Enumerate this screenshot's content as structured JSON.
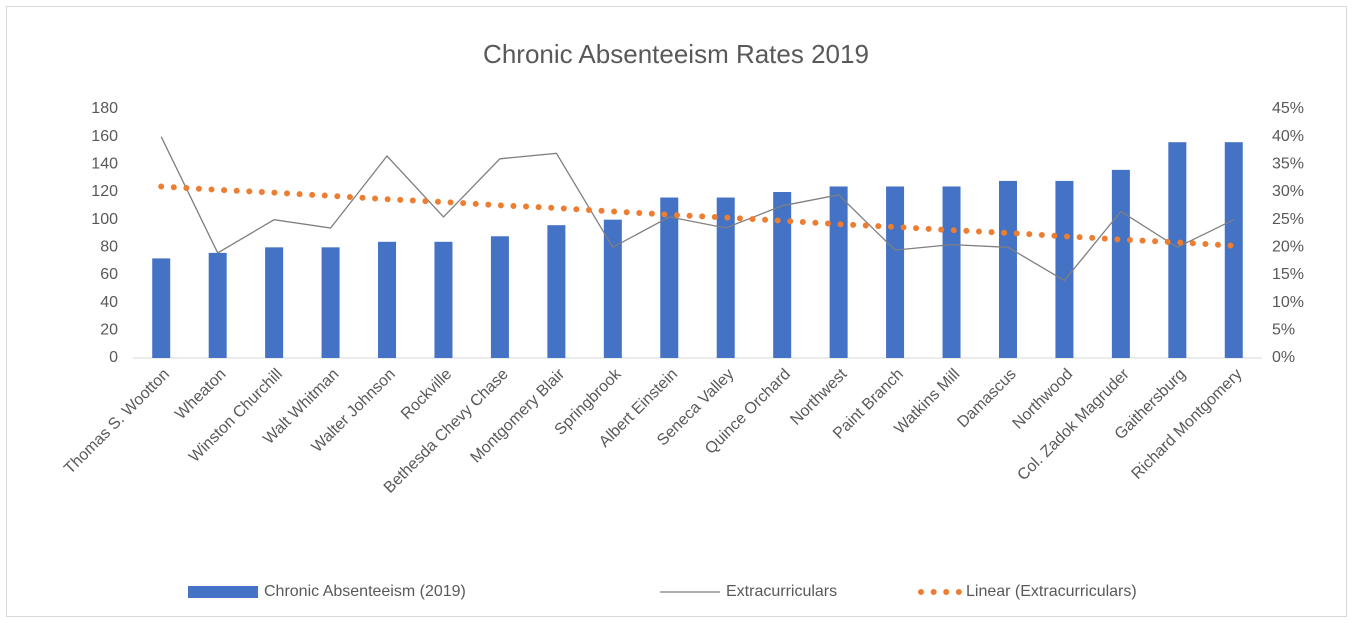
{
  "chart_data": {
    "type": "bar-line",
    "title": "Chronic Absenteeism Rates 2019",
    "categories": [
      "Thomas S. Wootton",
      "Wheaton",
      "Winston Churchill",
      "Walt Whitman",
      "Walter Johnson",
      "Rockville",
      "Bethesda Chevy Chase",
      "Montgomery Blair",
      "Springbrook",
      "Albert Einstein",
      "Seneca Valley",
      "Quince Orchard",
      "Northwest",
      "Paint Branch",
      "Watkins Mill",
      "Damascus",
      "Northwood",
      "Col. Zadok Magruder",
      "Gaithersburg",
      "Richard Montgomery"
    ],
    "series": [
      {
        "name": "Chronic Absenteeism (2019)",
        "type": "bar",
        "color": "#4472c4",
        "values": [
          72,
          76,
          80,
          80,
          84,
          84,
          88,
          96,
          100,
          116,
          116,
          120,
          124,
          124,
          124,
          128,
          128,
          136,
          156,
          156
        ]
      },
      {
        "name": "Extracurriculars",
        "type": "line",
        "axis": "y2",
        "color": "#7f7f7f",
        "values": [
          40,
          19,
          25,
          23.5,
          36.5,
          25.5,
          36,
          37,
          20,
          25.5,
          23.5,
          27.5,
          29.5,
          19.5,
          20.5,
          20,
          14,
          26.5,
          20,
          25
        ]
      },
      {
        "name": "Linear (Extracurriculars)",
        "type": "trend",
        "axis": "y2",
        "color": "#ed7d31",
        "values": [
          31.0,
          30.4,
          29.9,
          29.3,
          28.7,
          28.2,
          27.6,
          27.1,
          26.5,
          25.9,
          25.4,
          24.8,
          24.2,
          23.7,
          23.1,
          22.6,
          22.0,
          21.4,
          20.9,
          20.3
        ]
      }
    ],
    "ylim": [
      0,
      180
    ],
    "yticks": [
      0,
      20,
      40,
      60,
      80,
      100,
      120,
      140,
      160,
      180
    ],
    "y2lim": [
      0,
      45
    ],
    "y2ticks": [
      {
        "value": 0,
        "label": "0%"
      },
      {
        "value": 5,
        "label": "5%"
      },
      {
        "value": 10,
        "label": "10%"
      },
      {
        "value": 15,
        "label": "15%"
      },
      {
        "value": 20,
        "label": "20%"
      },
      {
        "value": 25,
        "label": "25%"
      },
      {
        "value": 30,
        "label": "30%"
      },
      {
        "value": 35,
        "label": "35%"
      },
      {
        "value": 40,
        "label": "40%"
      },
      {
        "value": 45,
        "label": "45%"
      }
    ],
    "grid": false,
    "legend": "bottom"
  }
}
